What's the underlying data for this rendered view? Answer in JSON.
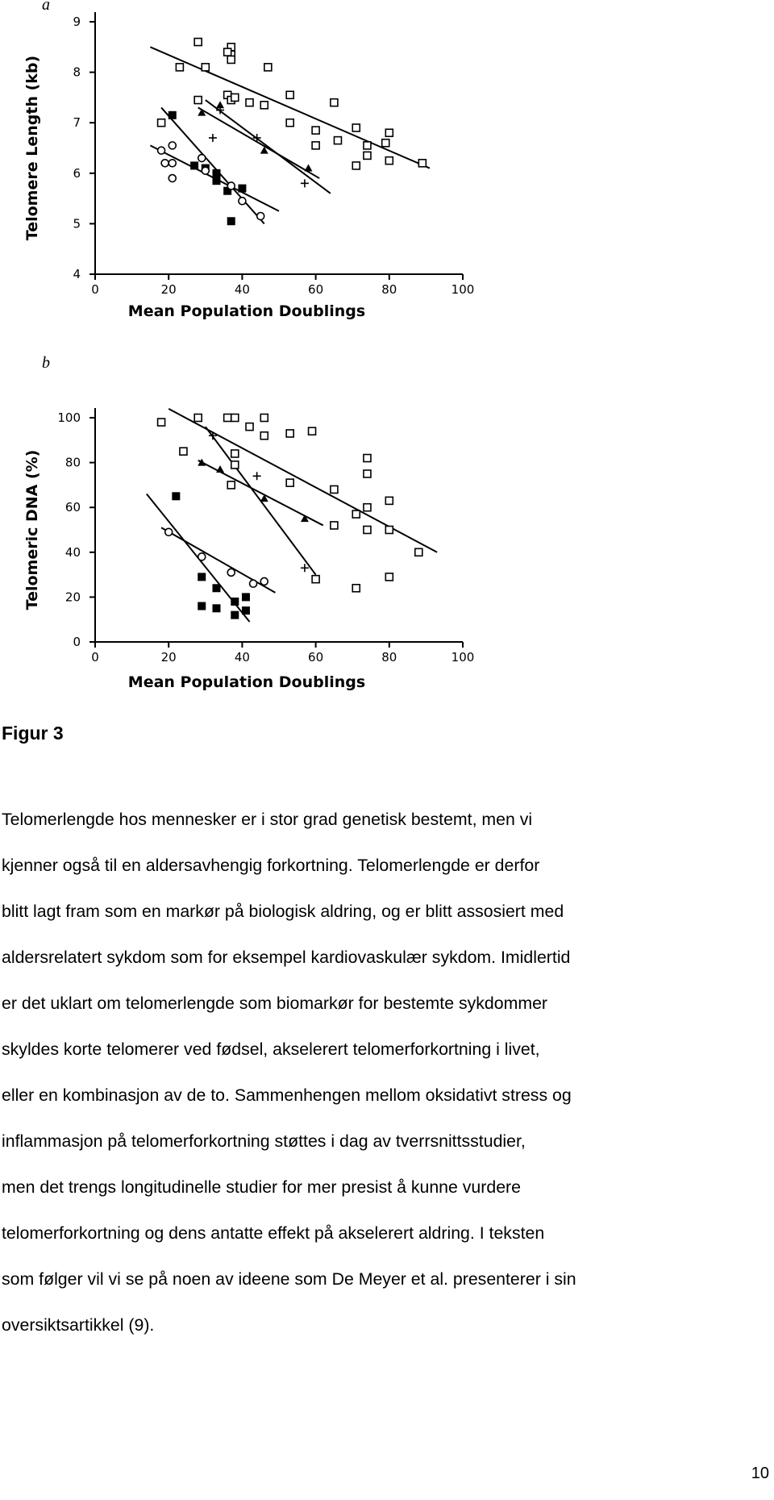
{
  "charts": [
    {
      "type": "scatter",
      "panel": "a",
      "ylabel": "Telomere Length (kb)",
      "xlabel": "Mean Population Doublings",
      "xlim": [
        0,
        100
      ],
      "xticks": [
        0,
        20,
        40,
        60,
        80,
        100
      ],
      "ylim": [
        4,
        9
      ],
      "yticks": [
        4,
        5,
        6,
        7,
        8,
        9
      ],
      "series": [
        {
          "marker": "open-square",
          "x": [
            28,
            23,
            30,
            37,
            37,
            37,
            36,
            47,
            28,
            36,
            37,
            38,
            42,
            46,
            53,
            53,
            60,
            60,
            65,
            66,
            71,
            71,
            74,
            74,
            79,
            80,
            80,
            89,
            18
          ],
          "y": [
            8.6,
            8.1,
            8.1,
            8.5,
            8.35,
            8.25,
            8.4,
            8.1,
            7.45,
            7.55,
            7.45,
            7.5,
            7.4,
            7.35,
            7.55,
            7.0,
            6.85,
            6.55,
            7.4,
            6.65,
            6.9,
            6.15,
            6.55,
            6.35,
            6.6,
            6.8,
            6.25,
            6.2,
            7.0
          ]
        },
        {
          "marker": "filled-square",
          "x": [
            21,
            27,
            30,
            33,
            33,
            36,
            40,
            37
          ],
          "y": [
            7.15,
            6.15,
            6.1,
            6.0,
            5.85,
            5.65,
            5.7,
            5.05
          ]
        },
        {
          "marker": "open-circle",
          "x": [
            18,
            19,
            21,
            21,
            21,
            29,
            30,
            37,
            40,
            45
          ],
          "y": [
            6.45,
            6.2,
            6.55,
            6.2,
            5.9,
            6.3,
            6.05,
            5.75,
            5.45,
            5.15
          ]
        },
        {
          "marker": "filled-triangle",
          "x": [
            29,
            34,
            46,
            58
          ],
          "y": [
            7.2,
            7.35,
            6.45,
            6.1
          ]
        },
        {
          "marker": "plus",
          "x": [
            32,
            34,
            44,
            57
          ],
          "y": [
            6.7,
            7.25,
            6.7,
            5.8
          ]
        }
      ],
      "fits": [
        {
          "x": [
            15,
            91
          ],
          "y": [
            8.5,
            6.1
          ]
        },
        {
          "x": [
            28,
            61
          ],
          "y": [
            7.3,
            5.9
          ]
        },
        {
          "x": [
            30,
            64
          ],
          "y": [
            7.45,
            5.6
          ]
        },
        {
          "x": [
            18,
            46
          ],
          "y": [
            7.3,
            5.0
          ]
        },
        {
          "x": [
            15,
            50
          ],
          "y": [
            6.55,
            5.25
          ]
        }
      ]
    },
    {
      "type": "scatter",
      "panel": "b",
      "ylabel": "Telomeric DNA (%)",
      "xlabel": "Mean Population Doublings",
      "xlim": [
        0,
        100
      ],
      "xticks": [
        0,
        20,
        40,
        60,
        80,
        100
      ],
      "ylim": [
        0,
        100
      ],
      "yticks": [
        0,
        20,
        40,
        60,
        80,
        100
      ],
      "series": [
        {
          "marker": "open-square",
          "x": [
            18,
            24,
            28,
            36,
            38,
            42,
            46,
            46,
            38,
            38,
            37,
            53,
            59,
            53,
            65,
            65,
            71,
            74,
            74,
            74,
            74,
            80,
            80,
            71,
            80,
            88,
            60
          ],
          "y": [
            98,
            85,
            100,
            100,
            100,
            96,
            100,
            92,
            84,
            79,
            70,
            93,
            94,
            71,
            68,
            52,
            57,
            82,
            75,
            60,
            50,
            63,
            50,
            24,
            29,
            40,
            28
          ]
        },
        {
          "marker": "filled-square",
          "x": [
            22,
            29,
            29,
            33,
            33,
            38,
            38,
            41,
            41
          ],
          "y": [
            65,
            29,
            16,
            24,
            15,
            18,
            12,
            20,
            14
          ]
        },
        {
          "marker": "open-circle",
          "x": [
            20,
            29,
            37,
            43,
            46
          ],
          "y": [
            49,
            38,
            31,
            26,
            27
          ]
        },
        {
          "marker": "filled-triangle",
          "x": [
            29,
            34,
            46,
            57
          ],
          "y": [
            80,
            77,
            64,
            55
          ]
        },
        {
          "marker": "plus",
          "x": [
            32,
            44,
            57
          ],
          "y": [
            92,
            74,
            33
          ]
        }
      ],
      "fits": [
        {
          "x": [
            20,
            93
          ],
          "y": [
            104,
            40
          ]
        },
        {
          "x": [
            28,
            62
          ],
          "y": [
            81,
            52
          ]
        },
        {
          "x": [
            30,
            60
          ],
          "y": [
            96,
            30
          ]
        },
        {
          "x": [
            18,
            49
          ],
          "y": [
            51,
            22
          ]
        },
        {
          "x": [
            14,
            42
          ],
          "y": [
            66,
            9
          ]
        }
      ]
    }
  ],
  "caption": "Figur 3",
  "paragraph": [
    "Telomerlengde hos mennesker er i stor grad genetisk bestemt, men vi",
    "kjenner også til en aldersavhengig forkortning. Telomerlengde er derfor",
    "blitt lagt fram som en markør på biologisk aldring, og er blitt assosiert med",
    "aldersrelatert sykdom som for eksempel kardiovaskulær sykdom. Imidlertid",
    "er det uklart om telomerlengde som biomarkør for bestemte sykdommer",
    "skyldes korte telomerer ved fødsel, akselerert telomerforkortning i livet,",
    "eller en kombinasjon av de to. Sammenhengen mellom oksidativt stress og",
    "inflammasjon på telomerforkortning støttes i dag av tverrsnittsstudier,",
    "men det trengs longitudinelle studier for mer presist å kunne vurdere",
    "telomerforkortning og dens antatte effekt på akselerert aldring. I teksten",
    "som følger vil vi se på noen av ideene som De Meyer et al. presenterer i sin",
    "oversiktsartikkel (9)."
  ],
  "page_number": "10"
}
